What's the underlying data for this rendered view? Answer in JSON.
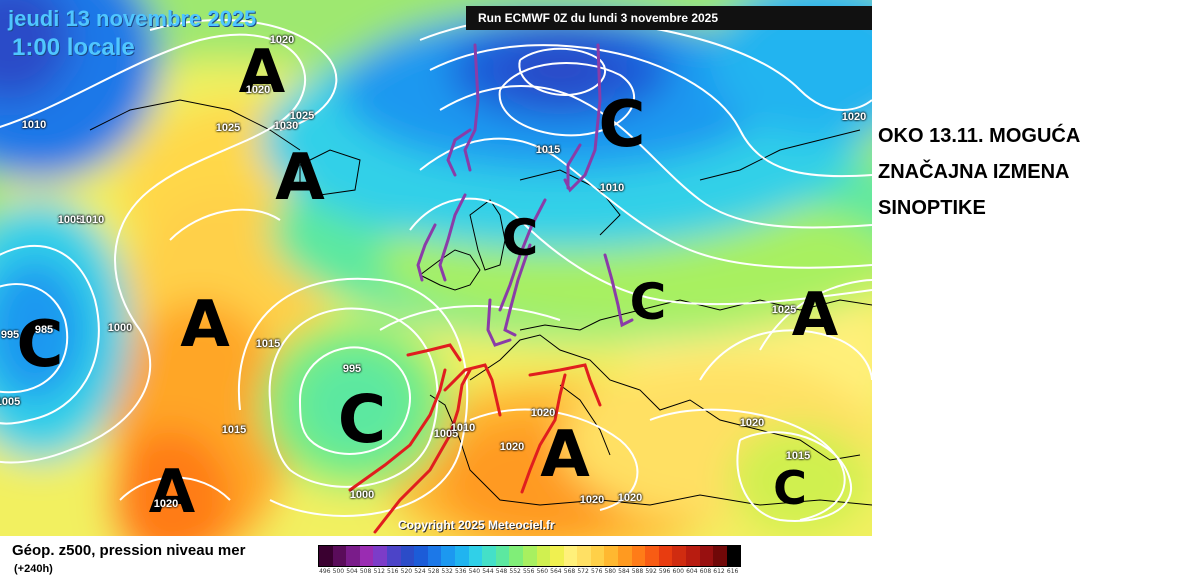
{
  "header": {
    "date": "jeudi 13 novembre 2025",
    "time": "1:00 locale",
    "run": "Run ECMWF 0Z du lundi 3 novembre 2025"
  },
  "copyright": "Copyright 2025 Meteociel.fr",
  "annotation": {
    "line1": "OKO 13.11. MOGUĆA",
    "line2": "ZNAČAJNA IZMENA",
    "line3": "SINOPTIKE"
  },
  "legend": {
    "title": "Géop. z500, pression niveau mer",
    "subtitle": "(+240h)",
    "ticks": [
      "496",
      "500",
      "504",
      "508",
      "512",
      "516",
      "520",
      "524",
      "528",
      "532",
      "536",
      "540",
      "544",
      "548",
      "552",
      "556",
      "560",
      "564",
      "568",
      "572",
      "576",
      "580",
      "584",
      "588",
      "592",
      "596",
      "600",
      "604",
      "608",
      "612",
      "616"
    ],
    "colors": [
      "#3a0030",
      "#5a0c5a",
      "#7a1c8a",
      "#9a2cb2",
      "#7c3cc8",
      "#4c44c8",
      "#2c4cc8",
      "#1c5cd8",
      "#1c78e8",
      "#1c98f0",
      "#20b4f0",
      "#30d0e8",
      "#44e0c8",
      "#5ce8a0",
      "#80ee78",
      "#a8f060",
      "#d0f050",
      "#f0f050",
      "#fff07a",
      "#ffe064",
      "#ffd048",
      "#ffb830",
      "#ff9a20",
      "#ff7c18",
      "#f85c14",
      "#e83c10",
      "#d02c10",
      "#b81c10",
      "#981010",
      "#700808",
      "#000000"
    ]
  },
  "systems": [
    {
      "letter": "A",
      "size": 60
    },
    {
      "letter": "A",
      "size": 64
    },
    {
      "letter": "A",
      "size": 64
    },
    {
      "letter": "A",
      "size": 60
    },
    {
      "letter": "A",
      "size": 64
    },
    {
      "letter": "A",
      "size": 60
    },
    {
      "letter": "C",
      "size": 64
    },
    {
      "letter": "C",
      "size": 66
    },
    {
      "letter": "C",
      "size": 64
    },
    {
      "letter": "C",
      "size": 50
    },
    {
      "letter": "C",
      "size": 50
    },
    {
      "letter": "C",
      "size": 46
    }
  ],
  "isobars": [
    "1020",
    "1020",
    "1025",
    "1030",
    "1025",
    "1010",
    "1005",
    "1010",
    "995",
    "985",
    "1000",
    "1005",
    "1015",
    "995",
    "1015",
    "1000",
    "1005",
    "1010",
    "1020",
    "1020",
    "1020",
    "1020",
    "1015",
    "1010",
    "1025",
    "1020",
    "1020",
    "1015",
    "1020"
  ]
}
